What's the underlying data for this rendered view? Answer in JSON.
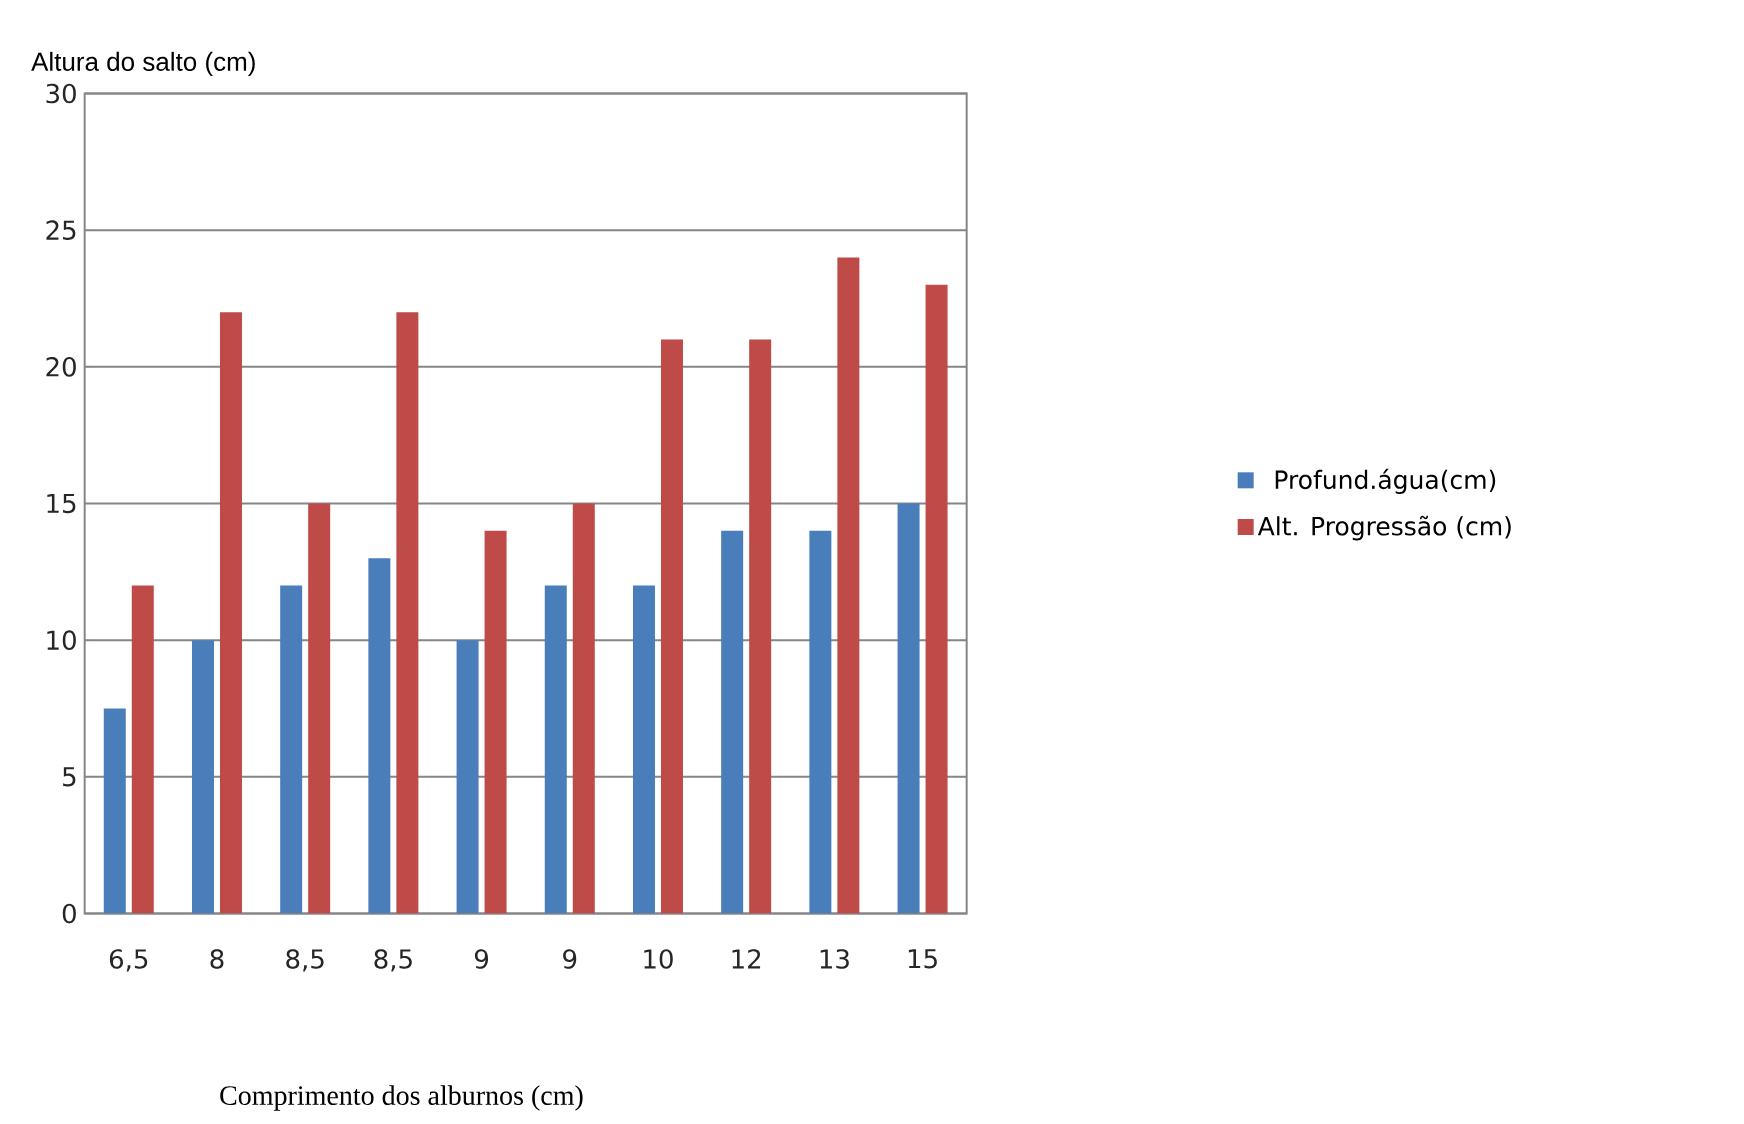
{
  "chart_data": {
    "type": "bar",
    "ylabel": "Altura do salto (cm)",
    "xlabel": "Comprimento dos alburnos (cm)",
    "categories": [
      "6,5",
      "8",
      "8,5",
      "8,5",
      "9",
      "9",
      "10",
      "12",
      "13",
      "15"
    ],
    "series": [
      {
        "name": "Profund.água(cm)",
        "color": "#4a7ebb",
        "values": [
          7.5,
          10,
          12,
          13,
          10,
          12,
          12,
          14,
          14,
          15
        ]
      },
      {
        "name": "Alt. Progressão (cm)",
        "color": "#be4b48",
        "values": [
          12,
          22,
          15,
          22,
          14,
          15,
          21,
          21,
          24,
          23
        ]
      }
    ],
    "ylim": [
      0,
      30
    ],
    "yticks": [
      0,
      5,
      10,
      15,
      20,
      25,
      30
    ],
    "grid": "y",
    "legend": "right"
  }
}
